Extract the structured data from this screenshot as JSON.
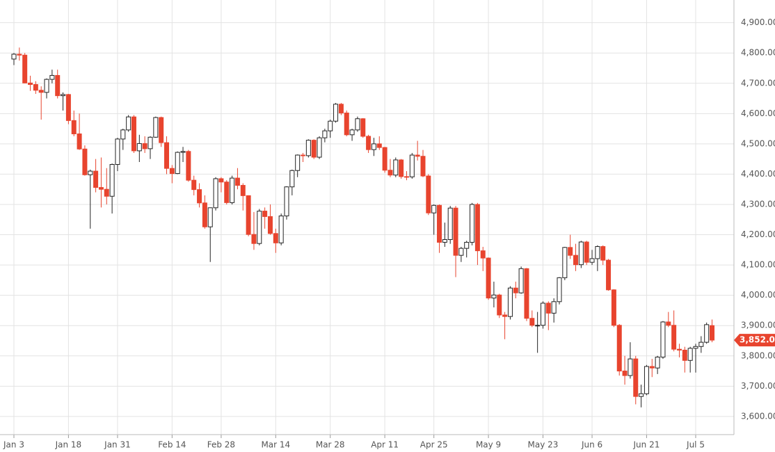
{
  "chart_data": {
    "type": "candlestick",
    "categories": [
      "Jan 3",
      null,
      null,
      null,
      null,
      null,
      null,
      null,
      null,
      null,
      "Jan 18",
      null,
      null,
      null,
      null,
      null,
      null,
      null,
      null,
      "Jan 31",
      null,
      null,
      null,
      null,
      null,
      null,
      null,
      null,
      null,
      "Feb 14",
      null,
      null,
      null,
      null,
      null,
      null,
      null,
      null,
      "Feb 28",
      null,
      null,
      null,
      null,
      null,
      null,
      null,
      null,
      null,
      "Mar 14",
      null,
      null,
      null,
      null,
      null,
      null,
      null,
      null,
      null,
      "Mar 28",
      null,
      null,
      null,
      null,
      null,
      null,
      null,
      null,
      null,
      "Apr 11",
      null,
      null,
      null,
      null,
      null,
      null,
      null,
      null,
      "Apr 25",
      null,
      null,
      null,
      null,
      null,
      null,
      null,
      null,
      null,
      "May 9",
      null,
      null,
      null,
      null,
      null,
      null,
      null,
      null,
      null,
      "May 23",
      null,
      null,
      null,
      null,
      null,
      null,
      null,
      null,
      "Jun 6",
      null,
      null,
      null,
      null,
      null,
      null,
      null,
      null,
      null,
      "Jun 21",
      null,
      null,
      null,
      null,
      null,
      null,
      null,
      null,
      "Jul 5",
      null,
      null,
      null
    ],
    "ohlc": [
      [
        4780,
        4800,
        4760,
        4796
      ],
      [
        4796,
        4818,
        4775,
        4793
      ],
      [
        4793,
        4800,
        4700,
        4701
      ],
      [
        4701,
        4725,
        4675,
        4696
      ],
      [
        4696,
        4707,
        4665,
        4677
      ],
      [
        4677,
        4690,
        4580,
        4670
      ],
      [
        4670,
        4716,
        4650,
        4713
      ],
      [
        4713,
        4745,
        4700,
        4726
      ],
      [
        4726,
        4745,
        4650,
        4659
      ],
      [
        4659,
        4670,
        4610,
        4663
      ],
      [
        4663,
        4665,
        4565,
        4577
      ],
      [
        4577,
        4610,
        4525,
        4533
      ],
      [
        4533,
        4600,
        4480,
        4483
      ],
      [
        4483,
        4495,
        4395,
        4398
      ],
      [
        4398,
        4415,
        4220,
        4410
      ],
      [
        4410,
        4450,
        4340,
        4356
      ],
      [
        4356,
        4455,
        4290,
        4350
      ],
      [
        4350,
        4420,
        4300,
        4327
      ],
      [
        4327,
        4435,
        4270,
        4432
      ],
      [
        4432,
        4520,
        4410,
        4516
      ],
      [
        4516,
        4550,
        4480,
        4546
      ],
      [
        4546,
        4595,
        4540,
        4589
      ],
      [
        4589,
        4595,
        4470,
        4477
      ],
      [
        4477,
        4530,
        4440,
        4501
      ],
      [
        4501,
        4525,
        4470,
        4484
      ],
      [
        4484,
        4525,
        4450,
        4522
      ],
      [
        4522,
        4590,
        4520,
        4587
      ],
      [
        4587,
        4590,
        4490,
        4504
      ],
      [
        4504,
        4525,
        4400,
        4419
      ],
      [
        4419,
        4430,
        4370,
        4402
      ],
      [
        4402,
        4475,
        4400,
        4472
      ],
      [
        4472,
        4490,
        4440,
        4475
      ],
      [
        4475,
        4480,
        4375,
        4380
      ],
      [
        4380,
        4395,
        4330,
        4349
      ],
      [
        4349,
        4370,
        4290,
        4305
      ],
      [
        4305,
        4330,
        4220,
        4226
      ],
      [
        4226,
        4290,
        4110,
        4289
      ],
      [
        4289,
        4390,
        4280,
        4385
      ],
      [
        4385,
        4390,
        4340,
        4374
      ],
      [
        4374,
        4380,
        4300,
        4306
      ],
      [
        4306,
        4395,
        4300,
        4387
      ],
      [
        4387,
        4420,
        4350,
        4363
      ],
      [
        4363,
        4370,
        4280,
        4329
      ],
      [
        4329,
        4330,
        4195,
        4201
      ],
      [
        4201,
        4275,
        4150,
        4171
      ],
      [
        4171,
        4285,
        4165,
        4278
      ],
      [
        4278,
        4290,
        4220,
        4260
      ],
      [
        4260,
        4300,
        4200,
        4204
      ],
      [
        4204,
        4220,
        4140,
        4173
      ],
      [
        4173,
        4270,
        4165,
        4262
      ],
      [
        4262,
        4360,
        4250,
        4358
      ],
      [
        4358,
        4415,
        4330,
        4412
      ],
      [
        4412,
        4465,
        4390,
        4463
      ],
      [
        4463,
        4470,
        4440,
        4461
      ],
      [
        4461,
        4515,
        4455,
        4512
      ],
      [
        4512,
        4515,
        4450,
        4456
      ],
      [
        4456,
        4525,
        4450,
        4520
      ],
      [
        4520,
        4550,
        4505,
        4543
      ],
      [
        4543,
        4580,
        4520,
        4575
      ],
      [
        4575,
        4635,
        4570,
        4631
      ],
      [
        4631,
        4635,
        4595,
        4602
      ],
      [
        4602,
        4610,
        4525,
        4530
      ],
      [
        4530,
        4550,
        4510,
        4546
      ],
      [
        4546,
        4590,
        4540,
        4583
      ],
      [
        4583,
        4585,
        4520,
        4525
      ],
      [
        4525,
        4530,
        4470,
        4481
      ],
      [
        4481,
        4520,
        4460,
        4500
      ],
      [
        4500,
        4525,
        4480,
        4488
      ],
      [
        4488,
        4490,
        4405,
        4413
      ],
      [
        4413,
        4450,
        4390,
        4397
      ],
      [
        4397,
        4455,
        4390,
        4447
      ],
      [
        4447,
        4450,
        4385,
        4392
      ],
      [
        4392,
        4410,
        4380,
        4391
      ],
      [
        4391,
        4470,
        4385,
        4463
      ],
      [
        4463,
        4510,
        4445,
        4459
      ],
      [
        4459,
        4480,
        4390,
        4394
      ],
      [
        4394,
        4400,
        4265,
        4272
      ],
      [
        4272,
        4300,
        4200,
        4297
      ],
      [
        4297,
        4300,
        4140,
        4175
      ],
      [
        4175,
        4240,
        4160,
        4184
      ],
      [
        4184,
        4295,
        4170,
        4288
      ],
      [
        4288,
        4295,
        4060,
        4132
      ],
      [
        4132,
        4160,
        4110,
        4155
      ],
      [
        4155,
        4180,
        4125,
        4175
      ],
      [
        4175,
        4305,
        4165,
        4300
      ],
      [
        4300,
        4305,
        4100,
        4147
      ],
      [
        4147,
        4160,
        4080,
        4123
      ],
      [
        4123,
        4125,
        3985,
        3991
      ],
      [
        3991,
        4045,
        3960,
        4001
      ],
      [
        4001,
        4005,
        3925,
        3935
      ],
      [
        3935,
        3945,
        3855,
        3930
      ],
      [
        3930,
        4030,
        3920,
        4024
      ],
      [
        4024,
        4045,
        3990,
        4008
      ],
      [
        4008,
        4095,
        4005,
        4088
      ],
      [
        4088,
        4090,
        3915,
        3924
      ],
      [
        3924,
        3950,
        3895,
        3901
      ],
      [
        3901,
        3945,
        3810,
        3901
      ],
      [
        3901,
        3980,
        3890,
        3974
      ],
      [
        3974,
        3980,
        3885,
        3941
      ],
      [
        3941,
        3990,
        3910,
        3979
      ],
      [
        3979,
        4060,
        3970,
        4058
      ],
      [
        4058,
        4160,
        4050,
        4158
      ],
      [
        4158,
        4200,
        4120,
        4132
      ],
      [
        4132,
        4170,
        4080,
        4101
      ],
      [
        4101,
        4180,
        4090,
        4176
      ],
      [
        4176,
        4180,
        4100,
        4109
      ],
      [
        4109,
        4150,
        4100,
        4121
      ],
      [
        4121,
        4165,
        4080,
        4161
      ],
      [
        4161,
        4165,
        4100,
        4116
      ],
      [
        4116,
        4120,
        4015,
        4018
      ],
      [
        4018,
        4020,
        3895,
        3901
      ],
      [
        3901,
        3905,
        3735,
        3750
      ],
      [
        3750,
        3800,
        3705,
        3735
      ],
      [
        3735,
        3845,
        3725,
        3790
      ],
      [
        3790,
        3800,
        3640,
        3666
      ],
      [
        3666,
        3705,
        3630,
        3675
      ],
      [
        3675,
        3770,
        3670,
        3765
      ],
      [
        3765,
        3790,
        3730,
        3760
      ],
      [
        3760,
        3800,
        3740,
        3796
      ],
      [
        3796,
        3915,
        3790,
        3912
      ],
      [
        3912,
        3945,
        3895,
        3901
      ],
      [
        3901,
        3950,
        3815,
        3822
      ],
      [
        3822,
        3840,
        3795,
        3819
      ],
      [
        3819,
        3830,
        3745,
        3785
      ],
      [
        3785,
        3830,
        3745,
        3825
      ],
      [
        3825,
        3840,
        3745,
        3831
      ],
      [
        3831,
        3865,
        3810,
        3845
      ],
      [
        3845,
        3910,
        3840,
        3903
      ],
      [
        3900,
        3920,
        3845,
        3852
      ]
    ],
    "up_color": "#ffffff",
    "down_color": "#e8442e",
    "outline_color": "#222222",
    "ylim": [
      3540,
      4975
    ],
    "yticks": [
      {
        "value": 3600,
        "label": "3,600.00"
      },
      {
        "value": 3700,
        "label": "3,700.00"
      },
      {
        "value": 3800,
        "label": "3,800.00"
      },
      {
        "value": 3900,
        "label": "3,900.00"
      },
      {
        "value": 4000,
        "label": "4,000.00"
      },
      {
        "value": 4100,
        "label": "4,100.00"
      },
      {
        "value": 4200,
        "label": "4,200.00"
      },
      {
        "value": 4300,
        "label": "4,300.00"
      },
      {
        "value": 4400,
        "label": "4,400.00"
      },
      {
        "value": 4500,
        "label": "4,500.00"
      },
      {
        "value": 4600,
        "label": "4,600.00"
      },
      {
        "value": 4700,
        "label": "4,700.00"
      },
      {
        "value": 4800,
        "label": "4,800.00"
      },
      {
        "value": 4900,
        "label": "4,900.00"
      }
    ],
    "last_price": {
      "value": 3852,
      "label": "3,852.00"
    },
    "grid": true
  }
}
